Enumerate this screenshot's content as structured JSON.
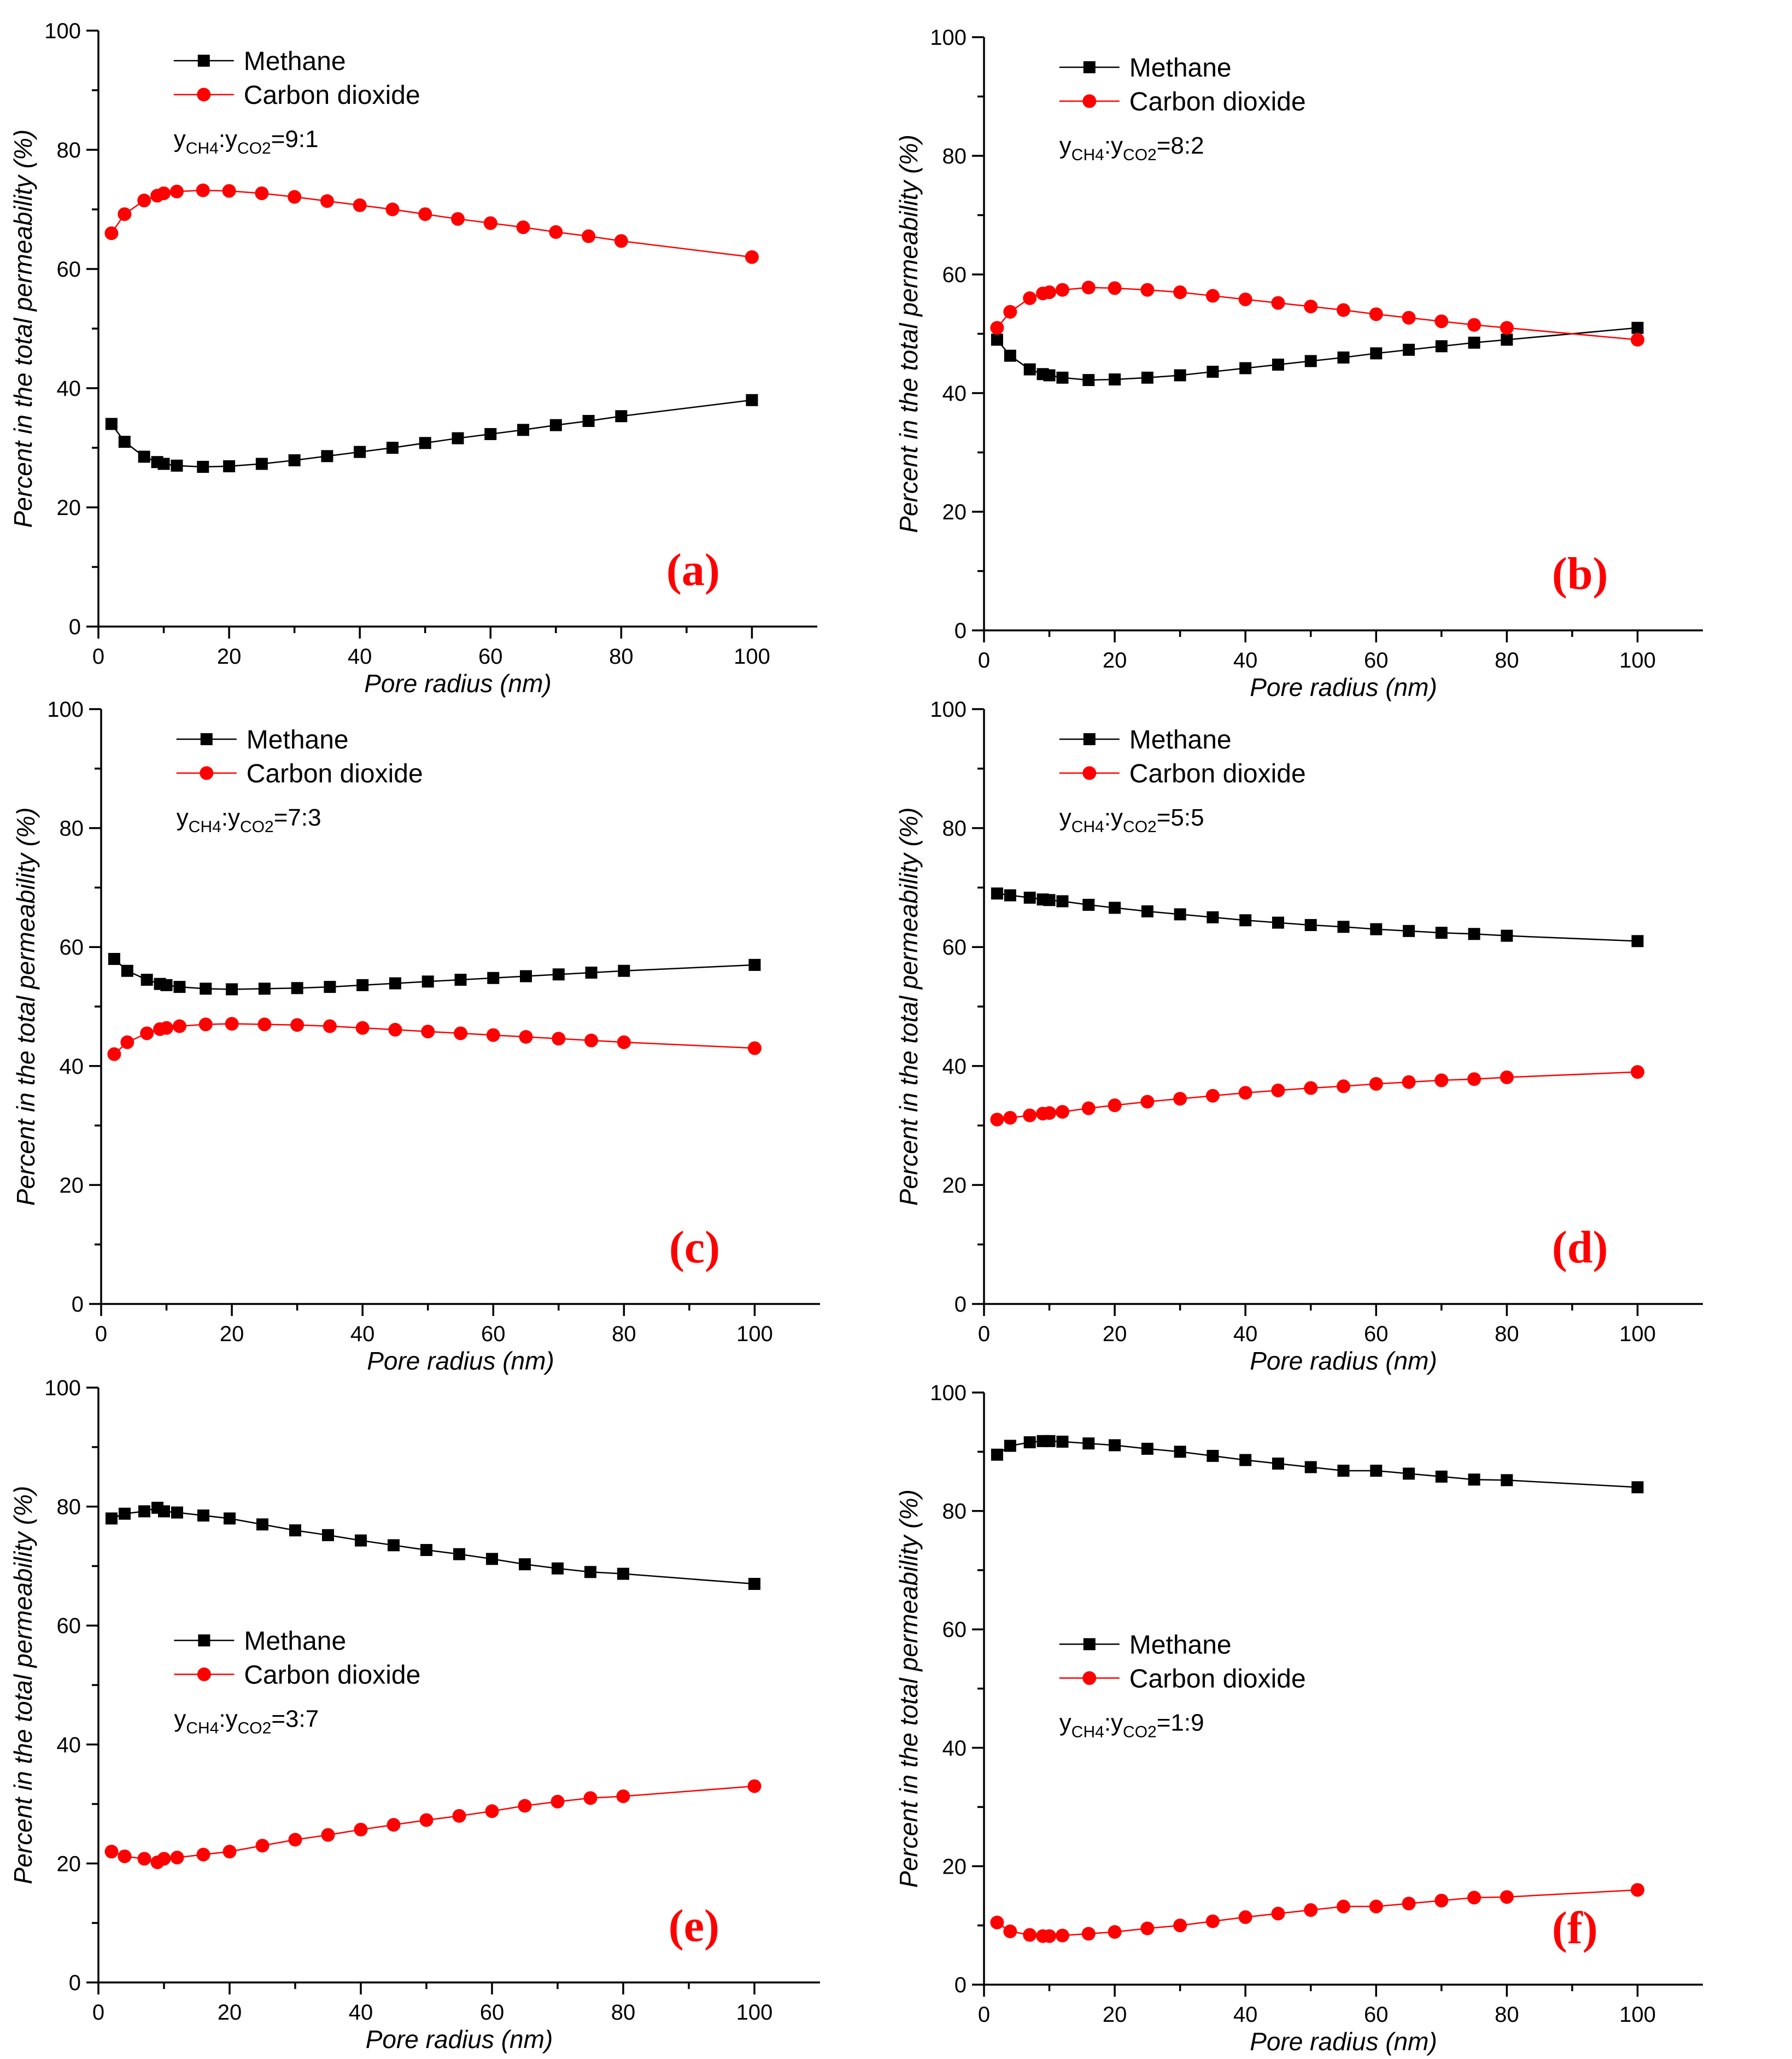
{
  "figure": {
    "series_names": [
      "Methane",
      "Carbon dioxide"
    ],
    "series_colors": {
      "Methane": "#000000",
      "Carbon dioxide": "#ff0000"
    },
    "xlabel": "Pore radius (nm)",
    "ylabel": "Percent in the total permeability (%)"
  },
  "chart_data": [
    {
      "panel": "(a)",
      "type": "line",
      "ratio": {
        "prefix": "y",
        "sub1": "CH4",
        "sep": ":y",
        "sub2": "CO2",
        "value": "=9:1"
      },
      "legend_position": "top-left",
      "xlabel": "Pore radius (nm)",
      "ylabel": "Percent in the total permeability (%)",
      "xlim": [
        0,
        110
      ],
      "ylim": [
        0,
        100
      ],
      "xticks": [
        0,
        20,
        40,
        60,
        80,
        100
      ],
      "yticks": [
        0,
        20,
        40,
        60,
        80,
        100
      ],
      "x": [
        2,
        4,
        7,
        9,
        10,
        12,
        16,
        20,
        25,
        30,
        35,
        40,
        45,
        50,
        55,
        60,
        65,
        70,
        75,
        80,
        100
      ],
      "series": [
        {
          "name": "Methane",
          "marker": "square",
          "values": [
            34,
            31,
            28.5,
            27.6,
            27.3,
            27,
            26.8,
            26.9,
            27.3,
            27.9,
            28.6,
            29.3,
            30,
            30.8,
            31.6,
            32.3,
            33,
            33.8,
            34.5,
            35.3,
            38
          ]
        },
        {
          "name": "Carbon dioxide",
          "marker": "circle",
          "values": [
            66,
            69.2,
            71.5,
            72.3,
            72.7,
            73,
            73.2,
            73.1,
            72.7,
            72.1,
            71.4,
            70.7,
            70,
            69.2,
            68.4,
            67.7,
            67,
            66.2,
            65.5,
            64.7,
            62
          ]
        }
      ]
    },
    {
      "panel": "(b)",
      "type": "line",
      "ratio": {
        "prefix": "y",
        "sub1": "CH4",
        "sep": ":y",
        "sub2": "CO2",
        "value": "=8:2"
      },
      "legend_position": "top-left",
      "xlabel": "Pore radius (nm)",
      "ylabel": "Percent in the total permeability (%)",
      "xlim": [
        0,
        110
      ],
      "ylim": [
        0,
        100
      ],
      "xticks": [
        0,
        20,
        40,
        60,
        80,
        100
      ],
      "yticks": [
        0,
        20,
        40,
        60,
        80,
        100
      ],
      "x": [
        2,
        4,
        7,
        9,
        10,
        12,
        16,
        20,
        25,
        30,
        35,
        40,
        45,
        50,
        55,
        60,
        65,
        70,
        75,
        80,
        100
      ],
      "series": [
        {
          "name": "Methane",
          "marker": "square",
          "values": [
            49,
            46.3,
            44,
            43.2,
            43,
            42.6,
            42.2,
            42.3,
            42.6,
            43,
            43.6,
            44.2,
            44.8,
            45.4,
            46,
            46.7,
            47.3,
            47.9,
            48.5,
            49,
            51
          ]
        },
        {
          "name": "Carbon dioxide",
          "marker": "circle",
          "values": [
            51,
            53.7,
            56,
            56.8,
            57,
            57.4,
            57.8,
            57.7,
            57.4,
            57,
            56.4,
            55.8,
            55.2,
            54.6,
            54,
            53.3,
            52.7,
            52.1,
            51.5,
            51,
            49
          ]
        }
      ]
    },
    {
      "panel": "(c)",
      "type": "line",
      "ratio": {
        "prefix": "y",
        "sub1": "CH4",
        "sep": ":y",
        "sub2": "CO2",
        "value": "=7:3"
      },
      "legend_position": "top-left",
      "xlabel": "Pore radius (nm)",
      "ylabel": "Percent in the total permeability (%)",
      "xlim": [
        0,
        110
      ],
      "ylim": [
        0,
        100
      ],
      "xticks": [
        0,
        20,
        40,
        60,
        80,
        100
      ],
      "yticks": [
        0,
        20,
        40,
        60,
        80,
        100
      ],
      "x": [
        2,
        4,
        7,
        9,
        10,
        12,
        16,
        20,
        25,
        30,
        35,
        40,
        45,
        50,
        55,
        60,
        65,
        70,
        75,
        80,
        100
      ],
      "series": [
        {
          "name": "Methane",
          "marker": "square",
          "values": [
            58,
            56,
            54.5,
            53.8,
            53.6,
            53.3,
            53,
            52.9,
            53,
            53.1,
            53.3,
            53.6,
            53.9,
            54.2,
            54.5,
            54.8,
            55.1,
            55.4,
            55.7,
            56,
            57
          ]
        },
        {
          "name": "Carbon dioxide",
          "marker": "circle",
          "values": [
            42,
            44,
            45.5,
            46.2,
            46.4,
            46.7,
            47,
            47.1,
            47,
            46.9,
            46.7,
            46.4,
            46.1,
            45.8,
            45.5,
            45.2,
            44.9,
            44.6,
            44.3,
            44,
            43
          ]
        }
      ]
    },
    {
      "panel": "(d)",
      "type": "line",
      "ratio": {
        "prefix": "y",
        "sub1": "CH4",
        "sep": ":y",
        "sub2": "CO2",
        "value": "=5:5"
      },
      "legend_position": "top-left",
      "xlabel": "Pore radius (nm)",
      "ylabel": "Percent in the total permeability (%)",
      "xlim": [
        0,
        110
      ],
      "ylim": [
        0,
        100
      ],
      "xticks": [
        0,
        20,
        40,
        60,
        80,
        100
      ],
      "yticks": [
        0,
        20,
        40,
        60,
        80,
        100
      ],
      "x": [
        2,
        4,
        7,
        9,
        10,
        12,
        16,
        20,
        25,
        30,
        35,
        40,
        45,
        50,
        55,
        60,
        65,
        70,
        75,
        80,
        100
      ],
      "series": [
        {
          "name": "Methane",
          "marker": "square",
          "values": [
            69,
            68.7,
            68.3,
            68,
            67.9,
            67.7,
            67.1,
            66.6,
            66,
            65.5,
            65,
            64.5,
            64.1,
            63.7,
            63.4,
            63,
            62.7,
            62.4,
            62.2,
            61.9,
            61
          ]
        },
        {
          "name": "Carbon dioxide",
          "marker": "circle",
          "values": [
            31,
            31.3,
            31.7,
            32,
            32.1,
            32.3,
            32.9,
            33.4,
            34,
            34.5,
            35,
            35.5,
            35.9,
            36.3,
            36.6,
            37,
            37.3,
            37.6,
            37.8,
            38.1,
            39
          ]
        }
      ]
    },
    {
      "panel": "(e)",
      "type": "line",
      "ratio": {
        "prefix": "y",
        "sub1": "CH4",
        "sep": ":y",
        "sub2": "CO2",
        "value": "=3:7"
      },
      "legend_position": "center-left",
      "xlabel": "Pore radius (nm)",
      "ylabel": "Percent in the total permeability (%)",
      "xlim": [
        0,
        110
      ],
      "ylim": [
        0,
        100
      ],
      "xticks": [
        0,
        20,
        40,
        60,
        80,
        100
      ],
      "yticks": [
        0,
        20,
        40,
        60,
        80,
        100
      ],
      "x": [
        2,
        4,
        7,
        9,
        10,
        12,
        16,
        20,
        25,
        30,
        35,
        40,
        45,
        50,
        55,
        60,
        65,
        70,
        75,
        80,
        100
      ],
      "series": [
        {
          "name": "Methane",
          "marker": "square",
          "values": [
            78,
            78.8,
            79.2,
            79.8,
            79.2,
            79,
            78.5,
            78,
            77,
            76,
            75.2,
            74.3,
            73.5,
            72.7,
            72,
            71.2,
            70.3,
            69.6,
            69,
            68.7,
            67
          ]
        },
        {
          "name": "Carbon dioxide",
          "marker": "circle",
          "values": [
            22,
            21.2,
            20.8,
            20.2,
            20.8,
            21,
            21.5,
            22,
            23,
            24,
            24.8,
            25.7,
            26.5,
            27.3,
            28,
            28.8,
            29.7,
            30.4,
            31,
            31.3,
            33
          ]
        }
      ]
    },
    {
      "panel": "(f)",
      "type": "line",
      "ratio": {
        "prefix": "y",
        "sub1": "CH4",
        "sep": ":y",
        "sub2": "CO2",
        "value": "=1:9"
      },
      "legend_position": "center-left",
      "xlabel": "Pore radius (nm)",
      "ylabel": "Percent in the total permeability (%)",
      "xlim": [
        0,
        110
      ],
      "ylim": [
        0,
        100
      ],
      "xticks": [
        0,
        20,
        40,
        60,
        80,
        100
      ],
      "yticks": [
        0,
        20,
        40,
        60,
        80,
        100
      ],
      "x": [
        2,
        4,
        7,
        9,
        10,
        12,
        16,
        20,
        25,
        30,
        35,
        40,
        45,
        50,
        55,
        60,
        65,
        70,
        75,
        80,
        100
      ],
      "series": [
        {
          "name": "Methane",
          "marker": "square",
          "values": [
            89.5,
            91,
            91.6,
            91.8,
            91.8,
            91.7,
            91.4,
            91.1,
            90.5,
            90,
            89.3,
            88.6,
            88,
            87.4,
            86.8,
            86.8,
            86.3,
            85.8,
            85.3,
            85.2,
            84
          ]
        },
        {
          "name": "Carbon dioxide",
          "marker": "circle",
          "values": [
            10.5,
            9,
            8.4,
            8.2,
            8.2,
            8.3,
            8.6,
            8.9,
            9.5,
            10,
            10.7,
            11.4,
            12,
            12.6,
            13.2,
            13.2,
            13.7,
            14.2,
            14.7,
            14.8,
            16
          ]
        }
      ]
    }
  ]
}
